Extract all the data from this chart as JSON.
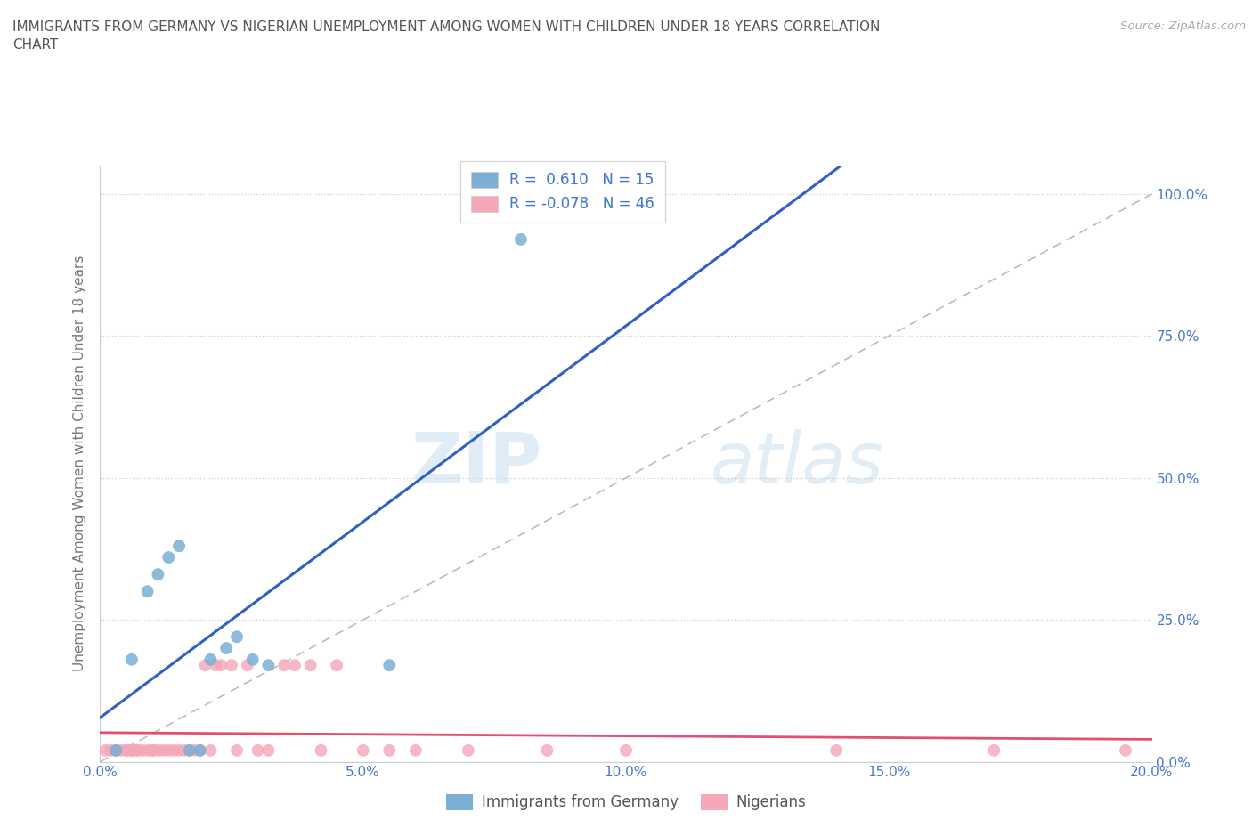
{
  "title": "IMMIGRANTS FROM GERMANY VS NIGERIAN UNEMPLOYMENT AMONG WOMEN WITH CHILDREN UNDER 18 YEARS CORRELATION\nCHART",
  "source": "Source: ZipAtlas.com",
  "ylabel": "Unemployment Among Women with Children Under 18 years",
  "xlim": [
    0.0,
    0.2
  ],
  "ylim": [
    0.0,
    1.05
  ],
  "yticks": [
    0.0,
    0.25,
    0.5,
    0.75,
    1.0
  ],
  "ytick_labels_right": [
    "0.0%",
    "25.0%",
    "50.0%",
    "75.0%",
    "100.0%"
  ],
  "xticks": [
    0.0,
    0.05,
    0.1,
    0.15,
    0.2
  ],
  "xtick_labels": [
    "0.0%",
    "5.0%",
    "10.0%",
    "15.0%",
    "20.0%"
  ],
  "blue_color": "#7bafd4",
  "pink_color": "#f4a7b9",
  "regression_line_color_blue": "#3060c0",
  "regression_line_color_pink": "#e05070",
  "diagonal_line_color": "#bbbbbb",
  "watermark_zip": "ZIP",
  "watermark_atlas": "atlas",
  "legend_label1": "R =  0.610   N = 15",
  "legend_label2": "R = -0.078   N = 46",
  "legend_label_bottom1": "Immigrants from Germany",
  "legend_label_bottom2": "Nigerians",
  "background_color": "#ffffff",
  "grid_color": "#cccccc",
  "tick_color": "#4477cc",
  "title_color": "#555555",
  "blue_x": [
    0.003,
    0.006,
    0.009,
    0.011,
    0.013,
    0.015,
    0.017,
    0.019,
    0.021,
    0.024,
    0.026,
    0.029,
    0.032,
    0.055,
    0.08
  ],
  "blue_y": [
    0.02,
    0.18,
    0.3,
    0.33,
    0.36,
    0.38,
    0.02,
    0.02,
    0.18,
    0.2,
    0.22,
    0.18,
    0.17,
    0.17,
    0.92
  ],
  "pink_x": [
    0.001,
    0.002,
    0.003,
    0.004,
    0.005,
    0.005,
    0.006,
    0.006,
    0.007,
    0.007,
    0.008,
    0.009,
    0.01,
    0.01,
    0.011,
    0.012,
    0.013,
    0.014,
    0.015,
    0.016,
    0.017,
    0.018,
    0.019,
    0.02,
    0.021,
    0.022,
    0.023,
    0.025,
    0.026,
    0.028,
    0.03,
    0.032,
    0.035,
    0.037,
    0.04,
    0.042,
    0.045,
    0.05,
    0.055,
    0.06,
    0.07,
    0.085,
    0.1,
    0.14,
    0.17,
    0.195
  ],
  "pink_y": [
    0.02,
    0.02,
    0.02,
    0.02,
    0.02,
    0.02,
    0.02,
    0.02,
    0.02,
    0.02,
    0.02,
    0.02,
    0.02,
    0.02,
    0.02,
    0.02,
    0.02,
    0.02,
    0.02,
    0.02,
    0.02,
    0.02,
    0.02,
    0.17,
    0.02,
    0.17,
    0.17,
    0.17,
    0.02,
    0.17,
    0.02,
    0.02,
    0.17,
    0.17,
    0.17,
    0.02,
    0.17,
    0.02,
    0.02,
    0.02,
    0.02,
    0.02,
    0.02,
    0.02,
    0.02,
    0.02
  ]
}
